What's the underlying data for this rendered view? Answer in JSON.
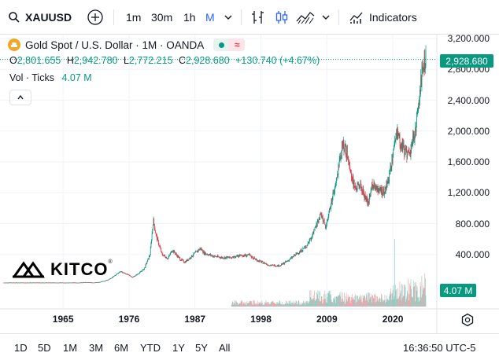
{
  "toolbar": {
    "symbol": "XAUUSD",
    "intervals": [
      "1m",
      "30m",
      "1h",
      "M"
    ],
    "active_interval": "M",
    "indicators_label": "Indicators",
    "icons": [
      "search-icon",
      "add-symbol-icon",
      "interval-dropdown-icon",
      "compare-icon",
      "candles-icon",
      "area-chart-icon",
      "chart-type-dropdown-icon",
      "indicators-icon"
    ]
  },
  "legend": {
    "title": "Gold Spot / U.S. Dollar · 1M · OANDA",
    "open_label": "O",
    "open": "2,801.655",
    "high_label": "H",
    "high": "2,942.780",
    "low_label": "L",
    "low": "2,772.215",
    "close_label": "C",
    "close": "2,928.680",
    "change": "+130.740 (+4.67%)",
    "volume_label": "Vol · Ticks",
    "volume_value": "4.07 M"
  },
  "badges": {
    "last_price": "2,928.680",
    "last_volume": "4.07 M"
  },
  "watermark": {
    "text": "KITCO",
    "mark": "®"
  },
  "bottom": {
    "ranges": [
      "1D",
      "5D",
      "1M",
      "3M",
      "6M",
      "YTD",
      "1Y",
      "5Y",
      "All"
    ],
    "clock": "16:36:50 UTC-5"
  },
  "colors": {
    "up": "#089981",
    "down": "#f23645",
    "last_price_line": "#089981",
    "grid": "#f0f3fa",
    "text": "#131722",
    "accent": "#2962ff",
    "gold_icon": "#f0a72a"
  },
  "chart_data": {
    "type": "candlestick",
    "title": "Gold Spot / U.S. Dollar · 1M · OANDA",
    "x_ticks": [
      "1965",
      "1976",
      "1987",
      "1998",
      "2009",
      "2020"
    ],
    "y_ticks": [
      "400.000",
      "800.000",
      "1,200.000",
      "1,600.000",
      "2,000.000",
      "2,400.000",
      "2,800.000",
      "3,200.000"
    ],
    "ylim": [
      0,
      3200
    ],
    "xlim": [
      1955.0,
      2025.5
    ],
    "grid": true,
    "last_price": 2928.68,
    "price_path": [
      [
        1955.0,
        35
      ],
      [
        1967.9,
        35
      ],
      [
        1968.5,
        40
      ],
      [
        1970.0,
        36
      ],
      [
        1971.0,
        40
      ],
      [
        1972.0,
        60
      ],
      [
        1973.0,
        90
      ],
      [
        1974.5,
        180
      ],
      [
        1975.5,
        150
      ],
      [
        1976.6,
        105
      ],
      [
        1977.5,
        150
      ],
      [
        1978.5,
        210
      ],
      [
        1979.5,
        400
      ],
      [
        1980.05,
        850
      ],
      [
        1980.5,
        650
      ],
      [
        1981.5,
        400
      ],
      [
        1982.5,
        350
      ],
      [
        1983.2,
        460
      ],
      [
        1984.5,
        340
      ],
      [
        1985.3,
        300
      ],
      [
        1986.5,
        380
      ],
      [
        1987.9,
        480
      ],
      [
        1988.5,
        420
      ],
      [
        1990.0,
        380
      ],
      [
        1991.5,
        360
      ],
      [
        1993.5,
        360
      ],
      [
        1994.5,
        385
      ],
      [
        1996.0,
        390
      ],
      [
        1997.5,
        320
      ],
      [
        1999.5,
        260
      ],
      [
        2001.2,
        255
      ],
      [
        2002.5,
        320
      ],
      [
        2004.0,
        410
      ],
      [
        2005.5,
        500
      ],
      [
        2006.5,
        630
      ],
      [
        2008.0,
        930
      ],
      [
        2008.8,
        750
      ],
      [
        2009.5,
        1000
      ],
      [
        2010.5,
        1300
      ],
      [
        2011.6,
        1850
      ],
      [
        2012.5,
        1700
      ],
      [
        2013.6,
        1250
      ],
      [
        2014.5,
        1300
      ],
      [
        2015.9,
        1060
      ],
      [
        2016.5,
        1300
      ],
      [
        2017.5,
        1250
      ],
      [
        2018.6,
        1200
      ],
      [
        2019.5,
        1450
      ],
      [
        2020.6,
        1975
      ],
      [
        2021.5,
        1800
      ],
      [
        2022.8,
        1640
      ],
      [
        2023.5,
        1930
      ],
      [
        2024.2,
        2250
      ],
      [
        2024.8,
        2700
      ],
      [
        2025.1,
        2800
      ],
      [
        2025.35,
        2929
      ]
    ],
    "volume_ticks_millions": {
      "note": "relative volume bars at bottom; peak near 2020",
      "peak": 21.0,
      "last": 4.07
    }
  }
}
